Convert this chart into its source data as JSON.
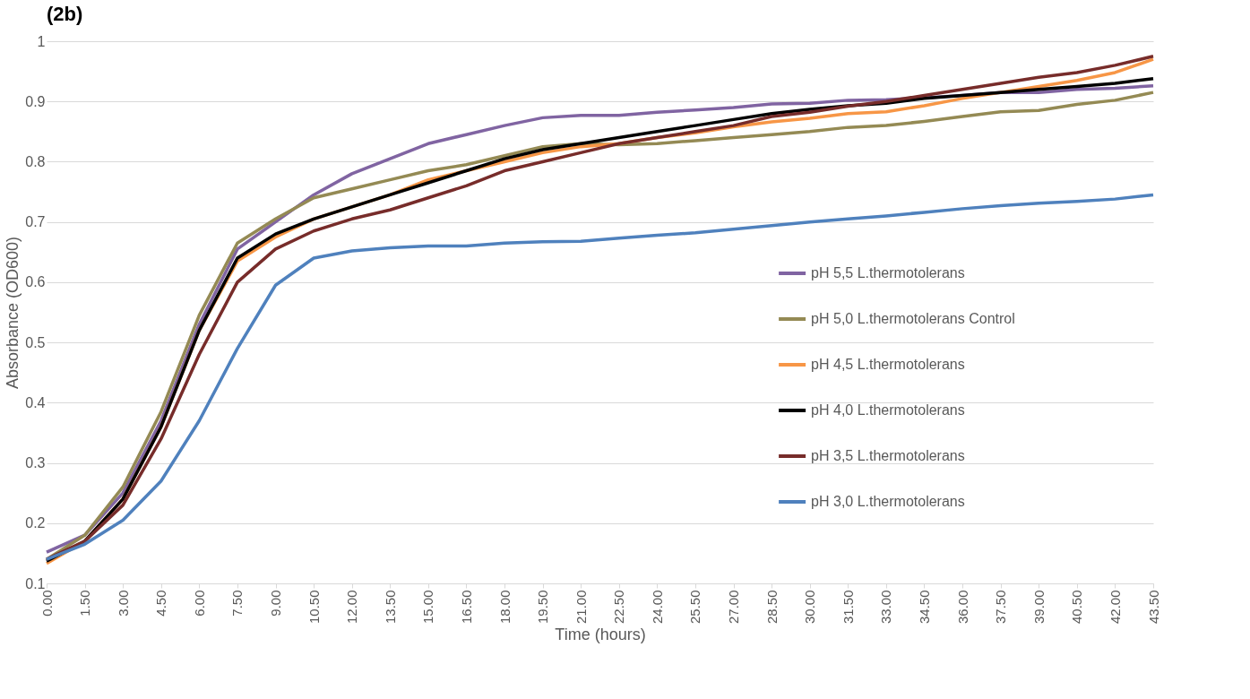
{
  "chart_data": {
    "type": "line",
    "title": "(2b)",
    "xlabel": "Time (hours)",
    "ylabel": "Absorbance (OD600)",
    "x": [
      0,
      1.5,
      3,
      4.5,
      6,
      7.5,
      9,
      10.5,
      12,
      13.5,
      15,
      16.5,
      18,
      19.5,
      21,
      22.5,
      24,
      25.5,
      27,
      28.5,
      30,
      31.5,
      33,
      34.5,
      36,
      37.5,
      39,
      40.5,
      42,
      43.5
    ],
    "xlim": [
      0,
      43.5
    ],
    "xticks": [
      {
        "value": 0,
        "label": "0.00"
      },
      {
        "value": 1.5,
        "label": "1.50"
      },
      {
        "value": 3,
        "label": "3.00"
      },
      {
        "value": 4.5,
        "label": "4.50"
      },
      {
        "value": 6,
        "label": "6.00"
      },
      {
        "value": 7.5,
        "label": "7.50"
      },
      {
        "value": 9,
        "label": "9.00"
      },
      {
        "value": 10.5,
        "label": "10.50"
      },
      {
        "value": 12,
        "label": "12.00"
      },
      {
        "value": 13.5,
        "label": "13.50"
      },
      {
        "value": 15,
        "label": "15.00"
      },
      {
        "value": 16.5,
        "label": "16.50"
      },
      {
        "value": 18,
        "label": "18.00"
      },
      {
        "value": 19.5,
        "label": "19.50"
      },
      {
        "value": 21,
        "label": "21.00"
      },
      {
        "value": 22.5,
        "label": "22.50"
      },
      {
        "value": 24,
        "label": "24.00"
      },
      {
        "value": 25.5,
        "label": "25.50"
      },
      {
        "value": 27,
        "label": "27.00"
      },
      {
        "value": 28.5,
        "label": "28.50"
      },
      {
        "value": 30,
        "label": "30.00"
      },
      {
        "value": 31.5,
        "label": "31.50"
      },
      {
        "value": 33,
        "label": "33.00"
      },
      {
        "value": 34.5,
        "label": "34.50"
      },
      {
        "value": 36,
        "label": "36.00"
      },
      {
        "value": 37.5,
        "label": "37.50"
      },
      {
        "value": 39,
        "label": "39.00"
      },
      {
        "value": 40.5,
        "label": "40.50"
      },
      {
        "value": 42,
        "label": "42.00"
      },
      {
        "value": 43.5,
        "label": "43.50"
      }
    ],
    "ylim": [
      0.1,
      1
    ],
    "yticks": [
      0.1,
      0.2,
      0.3,
      0.4,
      0.5,
      0.6,
      0.7,
      0.8,
      0.9,
      1
    ],
    "grid": "y",
    "legend": "right",
    "marker": "none",
    "line_style": "solid",
    "series": [
      {
        "name": "pH 5,5 L.thermotolerans",
        "color": "#8064a2",
        "values": [
          0.152,
          0.18,
          0.25,
          0.37,
          0.53,
          0.655,
          0.7,
          0.745,
          0.78,
          0.805,
          0.83,
          0.845,
          0.86,
          0.873,
          0.877,
          0.877,
          0.882,
          0.886,
          0.89,
          0.896,
          0.897,
          0.902,
          0.903,
          0.906,
          0.91,
          0.915,
          0.915,
          0.92,
          0.922,
          0.926
        ]
      },
      {
        "name": "pH 5,0 L.thermotolerans Control",
        "color": "#948a54",
        "values": [
          0.14,
          0.18,
          0.26,
          0.385,
          0.545,
          0.665,
          0.705,
          0.74,
          0.755,
          0.77,
          0.785,
          0.795,
          0.81,
          0.825,
          0.83,
          0.828,
          0.83,
          0.835,
          0.84,
          0.845,
          0.85,
          0.857,
          0.86,
          0.867,
          0.875,
          0.883,
          0.885,
          0.895,
          0.902,
          0.915
        ]
      },
      {
        "name": "pH 4,5 L.thermotolerans",
        "color": "#f79646",
        "values": [
          0.133,
          0.17,
          0.24,
          0.36,
          0.52,
          0.635,
          0.675,
          0.705,
          0.725,
          0.745,
          0.77,
          0.785,
          0.8,
          0.815,
          0.825,
          0.83,
          0.84,
          0.848,
          0.858,
          0.866,
          0.872,
          0.88,
          0.883,
          0.893,
          0.905,
          0.915,
          0.925,
          0.935,
          0.948,
          0.97
        ]
      },
      {
        "name": "pH 4,0 L.thermotolerans",
        "color": "#000000",
        "values": [
          0.137,
          0.17,
          0.24,
          0.36,
          0.52,
          0.64,
          0.68,
          0.705,
          0.725,
          0.745,
          0.765,
          0.785,
          0.805,
          0.82,
          0.83,
          0.84,
          0.85,
          0.86,
          0.87,
          0.88,
          0.887,
          0.893,
          0.897,
          0.905,
          0.91,
          0.915,
          0.92,
          0.925,
          0.93,
          0.938
        ]
      },
      {
        "name": "pH 3,5 L.thermotolerans",
        "color": "#772c2a",
        "values": [
          0.14,
          0.17,
          0.23,
          0.34,
          0.48,
          0.6,
          0.655,
          0.685,
          0.705,
          0.72,
          0.74,
          0.76,
          0.785,
          0.8,
          0.815,
          0.83,
          0.84,
          0.85,
          0.86,
          0.875,
          0.882,
          0.892,
          0.9,
          0.91,
          0.92,
          0.93,
          0.94,
          0.948,
          0.96,
          0.975
        ]
      },
      {
        "name": "pH 3,0 L.thermotolerans",
        "color": "#4f81bd",
        "values": [
          0.14,
          0.165,
          0.205,
          0.27,
          0.37,
          0.49,
          0.595,
          0.64,
          0.652,
          0.657,
          0.66,
          0.66,
          0.665,
          0.667,
          0.668,
          0.673,
          0.678,
          0.682,
          0.688,
          0.694,
          0.7,
          0.705,
          0.71,
          0.716,
          0.722,
          0.727,
          0.731,
          0.734,
          0.738,
          0.745
        ]
      }
    ]
  }
}
